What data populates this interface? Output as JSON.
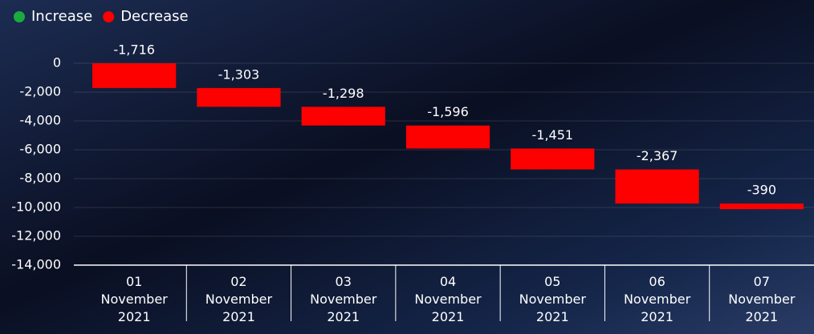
{
  "chart_data": {
    "type": "waterfall",
    "legend": [
      {
        "name": "Increase",
        "color": "#1aab40"
      },
      {
        "name": "Decrease",
        "color": "#fd0000"
      }
    ],
    "categories": [
      "01 November 2021",
      "02 November 2021",
      "03 November 2021",
      "04 November 2021",
      "05 November 2021",
      "06 November 2021",
      "07 November 2021"
    ],
    "values": [
      -1716,
      -1303,
      -1298,
      -1596,
      -1451,
      -2367,
      -390
    ],
    "value_labels": [
      "-1,716",
      "-1,303",
      "-1,298",
      "-1,596",
      "-1,451",
      "-2,367",
      "-390"
    ],
    "ylim": [
      -14000,
      0
    ],
    "yticks": [
      0,
      {
        "value": -2000,
        "label": "-2,000"
      },
      {
        "value": -4000,
        "label": "-4,000"
      },
      {
        "value": -6000,
        "label": "-6,000"
      },
      {
        "value": -8000,
        "label": "-8,000"
      },
      {
        "value": -10000,
        "label": "-10,000"
      },
      {
        "value": -12000,
        "label": "-12,000"
      },
      {
        "value": -14000,
        "label": "-14,000"
      }
    ],
    "grid": true
  }
}
